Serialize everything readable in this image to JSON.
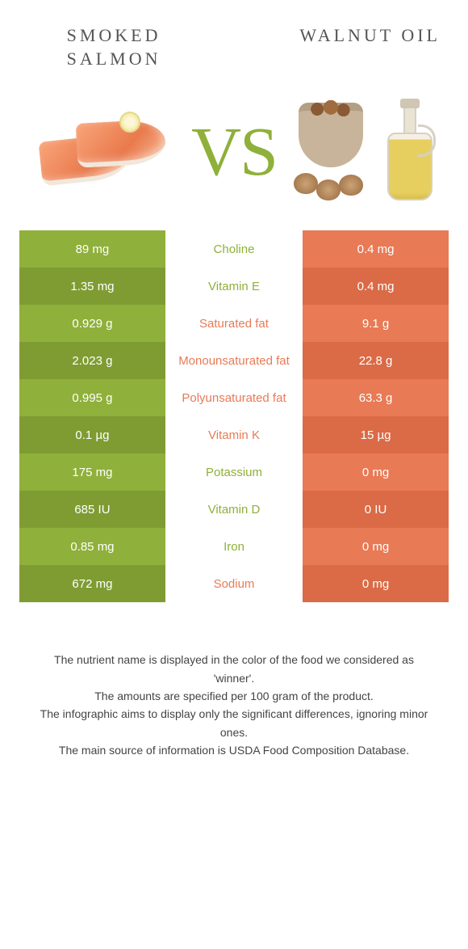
{
  "header": {
    "left_title": "SMOKED SALMON",
    "right_title": "WALNUT OIL",
    "vs": "VS"
  },
  "colors": {
    "green": "#8fb03a",
    "green_dark": "#7f9c33",
    "orange": "#e87a55",
    "orange_dark": "#da6b46",
    "background": "#ffffff",
    "text": "#333333"
  },
  "table": {
    "rows": [
      {
        "left": "89 mg",
        "label": "Choline",
        "right": "0.4 mg",
        "winner": "left"
      },
      {
        "left": "1.35 mg",
        "label": "Vitamin E",
        "right": "0.4 mg",
        "winner": "left"
      },
      {
        "left": "0.929 g",
        "label": "Saturated fat",
        "right": "9.1 g",
        "winner": "right"
      },
      {
        "left": "2.023 g",
        "label": "Monounsaturated fat",
        "right": "22.8 g",
        "winner": "right"
      },
      {
        "left": "0.995 g",
        "label": "Polyunsaturated fat",
        "right": "63.3 g",
        "winner": "right"
      },
      {
        "left": "0.1 µg",
        "label": "Vitamin K",
        "right": "15 µg",
        "winner": "right"
      },
      {
        "left": "175 mg",
        "label": "Potassium",
        "right": "0 mg",
        "winner": "left"
      },
      {
        "left": "685 IU",
        "label": "Vitamin D",
        "right": "0 IU",
        "winner": "left"
      },
      {
        "left": "0.85 mg",
        "label": "Iron",
        "right": "0 mg",
        "winner": "left"
      },
      {
        "left": "672 mg",
        "label": "Sodium",
        "right": "0 mg",
        "winner": "right"
      }
    ]
  },
  "footer": {
    "line1": "The nutrient name is displayed in the color of the food we considered as 'winner'.",
    "line2": "The amounts are specified per 100 gram of the product.",
    "line3": "The infographic aims to display only the significant differences, ignoring minor ones.",
    "line4": "The main source of information is USDA Food Composition Database."
  }
}
